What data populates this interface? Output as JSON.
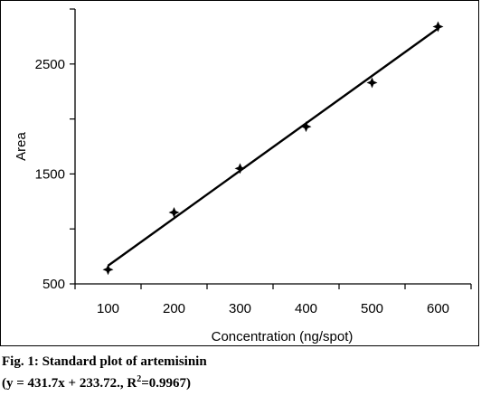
{
  "chart_data": {
    "type": "scatter",
    "xlabel": "Concentration (ng/spot)",
    "ylabel": "Area",
    "x_ticks": [
      100,
      200,
      300,
      400,
      500,
      600
    ],
    "y_ticks": [
      500,
      1500,
      2500
    ],
    "xlim": [
      50,
      650
    ],
    "ylim": [
      500,
      3000
    ],
    "grid": false,
    "legend": "none",
    "points": [
      {
        "x": 100,
        "y": 630
      },
      {
        "x": 200,
        "y": 1150
      },
      {
        "x": 300,
        "y": 1550
      },
      {
        "x": 400,
        "y": 1930
      },
      {
        "x": 500,
        "y": 2330
      },
      {
        "x": 600,
        "y": 2840
      }
    ],
    "fit_line": {
      "slope": 431.7,
      "intercept": 233.72,
      "x_start": 100,
      "x_end": 600
    },
    "marker_color": "#000000",
    "line_color": "#000000"
  },
  "caption": {
    "line1": "Fig. 1: Standard plot of artemisinin",
    "line2_prefix": "(y = 431.7x + 233.72., R",
    "line2_sup": "2",
    "line2_suffix": "=0.9967)"
  }
}
